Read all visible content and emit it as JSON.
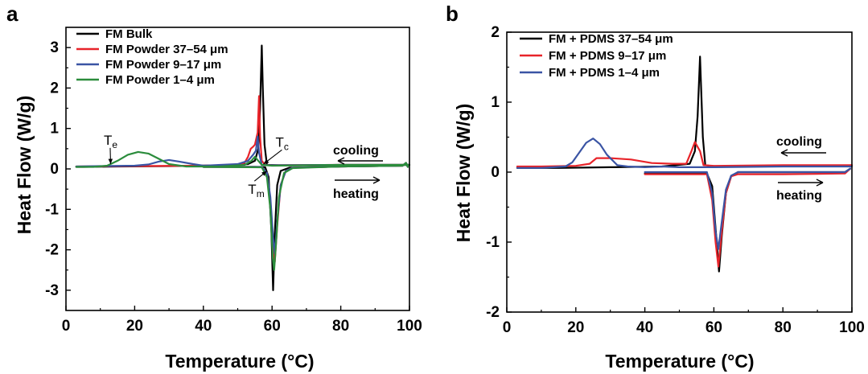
{
  "chart_data": [
    {
      "type": "line",
      "panel_label": "a",
      "xlabel": "Temperature (°C)",
      "ylabel": "Heat Flow (W/g)",
      "xlim": [
        0,
        100
      ],
      "ylim": [
        -3.5,
        3.5
      ],
      "xticks": [
        "0",
        "20",
        "40",
        "60",
        "80",
        "100"
      ],
      "yticks": [
        "-3",
        "-2",
        "-1",
        "0",
        "1",
        "2",
        "3"
      ],
      "legend_position": "top-left",
      "grid": false,
      "series": [
        {
          "name": "FM Bulk",
          "color": "#000000",
          "cooling": [
            [
              100,
              0.1
            ],
            [
              90,
              0.1
            ],
            [
              80,
              0.1
            ],
            [
              70,
              0.09
            ],
            [
              62,
              0.09
            ],
            [
              58.5,
              0.1
            ],
            [
              57.8,
              0.6
            ],
            [
              57.3,
              2.0
            ],
            [
              57.0,
              3.05
            ],
            [
              56.5,
              1.5
            ],
            [
              56.0,
              0.5
            ],
            [
              55.0,
              0.2
            ],
            [
              53,
              0.12
            ],
            [
              45,
              0.09
            ],
            [
              30,
              0.07
            ],
            [
              15,
              0.06
            ],
            [
              5,
              0.05
            ],
            [
              3,
              0.05
            ]
          ],
          "heating": [
            [
              40,
              0.05
            ],
            [
              55,
              0.05
            ],
            [
              58,
              0.04
            ],
            [
              59,
              -0.2
            ],
            [
              59.8,
              -1.5
            ],
            [
              60.3,
              -3.0
            ],
            [
              60.8,
              -1.6
            ],
            [
              61.5,
              -0.4
            ],
            [
              62.5,
              -0.05
            ],
            [
              65,
              0.03
            ],
            [
              80,
              0.06
            ],
            [
              98,
              0.08
            ],
            [
              99,
              0.15
            ],
            [
              99.5,
              0.05
            ]
          ]
        },
        {
          "name": "FM Powder 37–54 μm",
          "color": "#e8242a",
          "cooling": [
            [
              100,
              0.1
            ],
            [
              80,
              0.1
            ],
            [
              60,
              0.09
            ],
            [
              58,
              0.1
            ],
            [
              57,
              0.2
            ],
            [
              56.5,
              0.8
            ],
            [
              56.2,
              1.8
            ],
            [
              55.8,
              0.9
            ],
            [
              55.0,
              0.6
            ],
            [
              54.5,
              0.55
            ],
            [
              53.8,
              0.5
            ],
            [
              53,
              0.3
            ],
            [
              52,
              0.15
            ],
            [
              50,
              0.1
            ],
            [
              40,
              0.08
            ],
            [
              20,
              0.07
            ],
            [
              3,
              0.06
            ]
          ],
          "heating": [
            [
              40,
              0.05
            ],
            [
              57,
              0.05
            ],
            [
              58.5,
              -0.1
            ],
            [
              59.5,
              -0.8
            ],
            [
              60.2,
              -1.8
            ],
            [
              60.8,
              -2.3
            ],
            [
              61.5,
              -1.4
            ],
            [
              62.5,
              -0.4
            ],
            [
              64,
              -0.05
            ],
            [
              66,
              0.03
            ],
            [
              80,
              0.06
            ],
            [
              98,
              0.08
            ],
            [
              99,
              0.15
            ],
            [
              99.5,
              0.05
            ]
          ]
        },
        {
          "name": "FM Powder 9–17 μm",
          "color": "#3a54a4",
          "cooling": [
            [
              100,
              0.1
            ],
            [
              80,
              0.1
            ],
            [
              60,
              0.09
            ],
            [
              57,
              0.1
            ],
            [
              56.2,
              0.4
            ],
            [
              55.8,
              0.8
            ],
            [
              55.3,
              0.45
            ],
            [
              54.5,
              0.35
            ],
            [
              53,
              0.2
            ],
            [
              50,
              0.12
            ],
            [
              45,
              0.1
            ],
            [
              40,
              0.08
            ],
            [
              37,
              0.12
            ],
            [
              33,
              0.18
            ],
            [
              30,
              0.22
            ],
            [
              27,
              0.18
            ],
            [
              24,
              0.11
            ],
            [
              20,
              0.08
            ],
            [
              10,
              0.07
            ],
            [
              3,
              0.06
            ]
          ],
          "heating": [
            [
              40,
              0.05
            ],
            [
              57,
              0.05
            ],
            [
              58.5,
              -0.1
            ],
            [
              59.5,
              -0.7
            ],
            [
              60.3,
              -1.7
            ],
            [
              60.8,
              -2.1
            ],
            [
              61.5,
              -1.3
            ],
            [
              62.5,
              -0.4
            ],
            [
              64,
              -0.05
            ],
            [
              66,
              0.03
            ],
            [
              80,
              0.06
            ],
            [
              98,
              0.08
            ],
            [
              99,
              0.15
            ],
            [
              99.5,
              0.05
            ]
          ]
        },
        {
          "name": "FM Powder 1–4 μm",
          "color": "#2b8c3c",
          "cooling": [
            [
              100,
              0.1
            ],
            [
              80,
              0.1
            ],
            [
              60,
              0.08
            ],
            [
              57,
              0.1
            ],
            [
              56,
              0.2
            ],
            [
              55,
              0.3
            ],
            [
              54,
              0.2
            ],
            [
              52,
              0.1
            ],
            [
              45,
              0.06
            ],
            [
              35,
              0.06
            ],
            [
              30,
              0.12
            ],
            [
              27,
              0.25
            ],
            [
              24,
              0.38
            ],
            [
              21,
              0.42
            ],
            [
              18,
              0.35
            ],
            [
              15,
              0.2
            ],
            [
              12,
              0.08
            ],
            [
              8,
              0.05
            ],
            [
              3,
              0.05
            ]
          ],
          "heating": [
            [
              40,
              0.05
            ],
            [
              57,
              0.04
            ],
            [
              58.5,
              -0.2
            ],
            [
              59.5,
              -1.0
            ],
            [
              60.2,
              -2.2
            ],
            [
              60.6,
              -2.5
            ],
            [
              61.2,
              -1.8
            ],
            [
              62,
              -0.7
            ],
            [
              63.5,
              -0.1
            ],
            [
              66,
              0.02
            ],
            [
              80,
              0.06
            ],
            [
              98,
              0.08
            ],
            [
              99,
              0.15
            ],
            [
              99.5,
              0.05
            ]
          ]
        }
      ],
      "annotations": [
        {
          "id": "te",
          "main": "T",
          "sub": "e",
          "x": 11,
          "y": 0.6,
          "arrow_to": [
            13,
            0.12
          ]
        },
        {
          "id": "tc",
          "main": "T",
          "sub": "c",
          "x": 61,
          "y": 0.55,
          "arrow_to": [
            57.5,
            0.12
          ]
        },
        {
          "id": "tm",
          "main": "T",
          "sub": "m",
          "x": 53,
          "y": -0.62,
          "arrow_to": [
            58.5,
            -0.05
          ]
        }
      ],
      "direction_labels": {
        "cooling": "cooling",
        "heating": "heating"
      }
    },
    {
      "type": "line",
      "panel_label": "b",
      "xlabel": "Temperature (°C)",
      "ylabel": "Heat Flow (W/g)",
      "xlim": [
        0,
        100
      ],
      "ylim": [
        -2,
        2
      ],
      "xticks": [
        "0",
        "20",
        "40",
        "60",
        "80",
        "100"
      ],
      "yticks": [
        "-2",
        "-1",
        "0",
        "1",
        "2"
      ],
      "legend_position": "top-left",
      "grid": false,
      "series": [
        {
          "name": "FM + PDMS 37–54 μm",
          "color": "#000000",
          "cooling": [
            [
              100,
              0.1
            ],
            [
              98,
              0.09
            ],
            [
              80,
              0.09
            ],
            [
              60,
              0.08
            ],
            [
              57.5,
              0.1
            ],
            [
              56.8,
              0.5
            ],
            [
              56.0,
              1.65
            ],
            [
              55.3,
              0.8
            ],
            [
              54.5,
              0.3
            ],
            [
              53,
              0.12
            ],
            [
              45,
              0.08
            ],
            [
              30,
              0.07
            ],
            [
              15,
              0.06
            ],
            [
              3,
              0.06
            ]
          ],
          "heating": [
            [
              40,
              -0.02
            ],
            [
              58,
              -0.02
            ],
            [
              59.5,
              -0.2
            ],
            [
              60.5,
              -0.8
            ],
            [
              61.5,
              -1.42
            ],
            [
              62.3,
              -0.9
            ],
            [
              63.5,
              -0.3
            ],
            [
              65,
              -0.06
            ],
            [
              67,
              0.0
            ],
            [
              80,
              0.0
            ],
            [
              98,
              0.0
            ],
            [
              99.5,
              0.05
            ]
          ]
        },
        {
          "name": "FM + PDMS 9–17 μm",
          "color": "#e8242a",
          "cooling": [
            [
              100,
              0.1
            ],
            [
              98,
              0.1
            ],
            [
              80,
              0.1
            ],
            [
              60,
              0.09
            ],
            [
              57,
              0.1
            ],
            [
              56,
              0.3
            ],
            [
              54.5,
              0.43
            ],
            [
              53.5,
              0.3
            ],
            [
              52,
              0.12
            ],
            [
              48,
              0.12
            ],
            [
              42,
              0.13
            ],
            [
              36,
              0.18
            ],
            [
              30,
              0.2
            ],
            [
              26,
              0.2
            ],
            [
              24,
              0.12
            ],
            [
              20,
              0.09
            ],
            [
              10,
              0.08
            ],
            [
              3,
              0.08
            ]
          ],
          "heating": [
            [
              40,
              -0.03
            ],
            [
              58,
              -0.03
            ],
            [
              59.5,
              -0.4
            ],
            [
              60.5,
              -1.0
            ],
            [
              61.3,
              -1.35
            ],
            [
              62.2,
              -0.9
            ],
            [
              63.5,
              -0.3
            ],
            [
              65,
              -0.06
            ],
            [
              67,
              -0.03
            ],
            [
              80,
              -0.03
            ],
            [
              98,
              -0.02
            ],
            [
              99.5,
              0.05
            ]
          ]
        },
        {
          "name": "FM + PDMS 1–4 μm",
          "color": "#3a54a4",
          "cooling": [
            [
              100,
              0.08
            ],
            [
              98,
              0.08
            ],
            [
              80,
              0.08
            ],
            [
              60,
              0.07
            ],
            [
              55,
              0.07
            ],
            [
              50,
              0.07
            ],
            [
              45,
              0.08
            ],
            [
              40,
              0.07
            ],
            [
              35,
              0.08
            ],
            [
              32,
              0.1
            ],
            [
              29,
              0.25
            ],
            [
              27,
              0.4
            ],
            [
              25,
              0.48
            ],
            [
              23,
              0.42
            ],
            [
              21,
              0.28
            ],
            [
              19,
              0.14
            ],
            [
              17,
              0.08
            ],
            [
              10,
              0.06
            ],
            [
              3,
              0.06
            ]
          ],
          "heating": [
            [
              40,
              0.0
            ],
            [
              58,
              0.0
            ],
            [
              59.5,
              -0.3
            ],
            [
              60.5,
              -0.85
            ],
            [
              61.3,
              -1.1
            ],
            [
              62.2,
              -0.75
            ],
            [
              63.5,
              -0.25
            ],
            [
              65,
              -0.05
            ],
            [
              67,
              0.0
            ],
            [
              80,
              0.0
            ],
            [
              98,
              0.0
            ],
            [
              99.5,
              0.05
            ]
          ]
        }
      ],
      "direction_labels": {
        "cooling": "cooling",
        "heating": "heating"
      }
    }
  ]
}
